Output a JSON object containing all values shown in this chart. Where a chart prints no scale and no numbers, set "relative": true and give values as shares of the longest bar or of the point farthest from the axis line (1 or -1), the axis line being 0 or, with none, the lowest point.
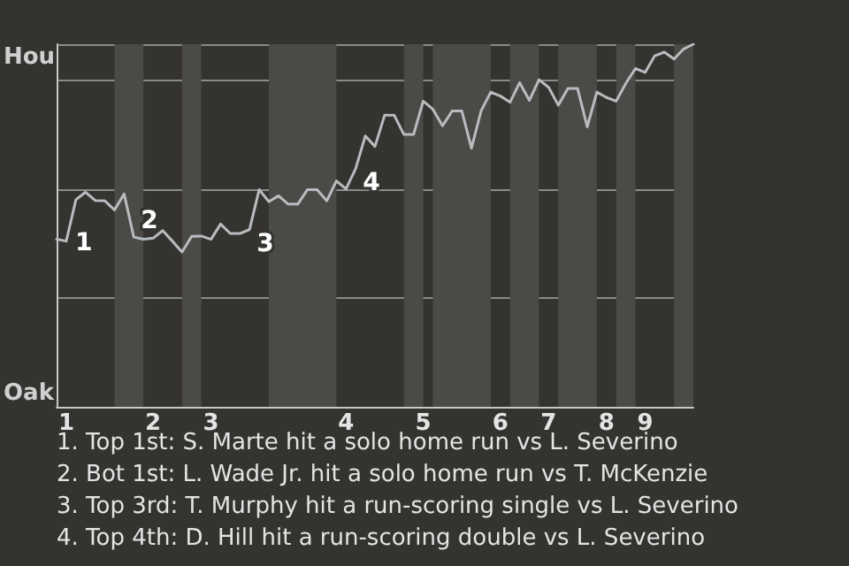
{
  "chart_data": {
    "type": "line",
    "relative": true,
    "categories": [
      null,
      "1",
      null,
      null,
      null,
      null,
      null,
      null,
      null,
      null,
      "2",
      null,
      null,
      null,
      null,
      null,
      "3",
      null,
      null,
      null,
      null,
      null,
      null,
      null,
      null,
      null,
      null,
      null,
      null,
      null,
      "4",
      null,
      null,
      null,
      null,
      null,
      null,
      null,
      "5",
      null,
      null,
      null,
      null,
      null,
      null,
      null,
      "6",
      null,
      null,
      null,
      null,
      "7",
      null,
      null,
      null,
      null,
      null,
      "8",
      null,
      null,
      null,
      "9",
      null,
      null,
      null,
      null,
      null
    ],
    "series": [
      {
        "color": "#b8bcbf",
        "values": [
          0.462,
          0.457,
          0.571,
          0.592,
          0.569,
          0.568,
          0.543,
          0.587,
          0.468,
          0.462,
          0.465,
          0.486,
          0.457,
          0.427,
          0.47,
          0.471,
          0.462,
          0.504,
          0.478,
          0.478,
          0.489,
          0.599,
          0.566,
          0.582,
          0.559,
          0.559,
          0.599,
          0.599,
          0.568,
          0.623,
          0.601,
          0.657,
          0.747,
          0.718,
          0.804,
          0.804,
          0.751,
          0.751,
          0.843,
          0.821,
          0.775,
          0.816,
          0.816,
          0.713,
          0.816,
          0.868,
          0.857,
          0.84,
          0.894,
          0.845,
          0.902,
          0.881,
          0.832,
          0.878,
          0.878,
          0.772,
          0.868,
          0.853,
          0.843,
          0.892,
          0.933,
          0.922,
          0.968,
          0.978,
          0.959,
          0.987,
          1
        ]
      }
    ],
    "grid": "y",
    "marker": "none",
    "line_style": "solid",
    "annotations": [
      "Hou",
      "Oak",
      "2",
      "3",
      "4",
      {
        "text": "1",
        "x": "1",
        "y": 0.457
      },
      "1. Top 1st: S. Marte hit a solo home run vs L. Severino",
      "2. Bot 1st: L. Wade Jr. hit a solo home run vs T. McKenzie",
      "3. Top 3rd: T. Murphy hit a run-scoring single vs L. Severino",
      "4. Top 4th: D. Hill hit a run-scoring double vs L. Severino"
    ]
  }
}
